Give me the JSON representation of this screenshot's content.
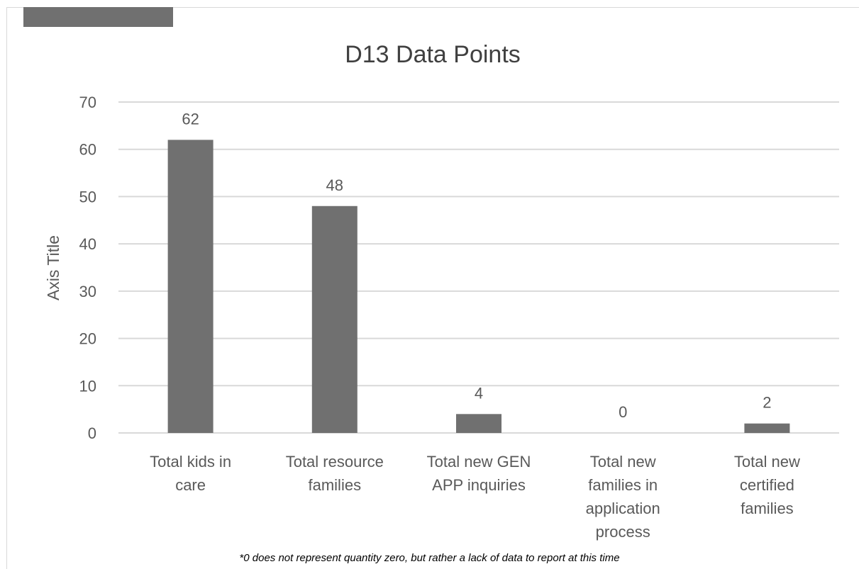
{
  "chart_data": {
    "type": "bar",
    "title": "D13 Data Points",
    "ylabel": "Axis Title",
    "xlabel": "",
    "categories": [
      [
        "Total kids in",
        "care"
      ],
      [
        "Total resource",
        "families"
      ],
      [
        "Total new GEN",
        "APP inquiries"
      ],
      [
        "Total new",
        "families in",
        "application",
        "process"
      ],
      [
        "Total new",
        "certified",
        "families"
      ]
    ],
    "values": [
      62,
      48,
      4,
      0,
      2
    ],
    "data_labels": [
      "62",
      "48",
      "4",
      "0",
      "2"
    ],
    "ylim": [
      0,
      70
    ],
    "yticks": [
      0,
      10,
      20,
      30,
      40,
      50,
      60,
      70
    ],
    "grid": true,
    "legend": "none",
    "bar_color": "#707070",
    "grid_color": "#d9d9d9"
  },
  "footnote": "*0 does not represent quantity zero, but rather a lack of data to report at this time"
}
